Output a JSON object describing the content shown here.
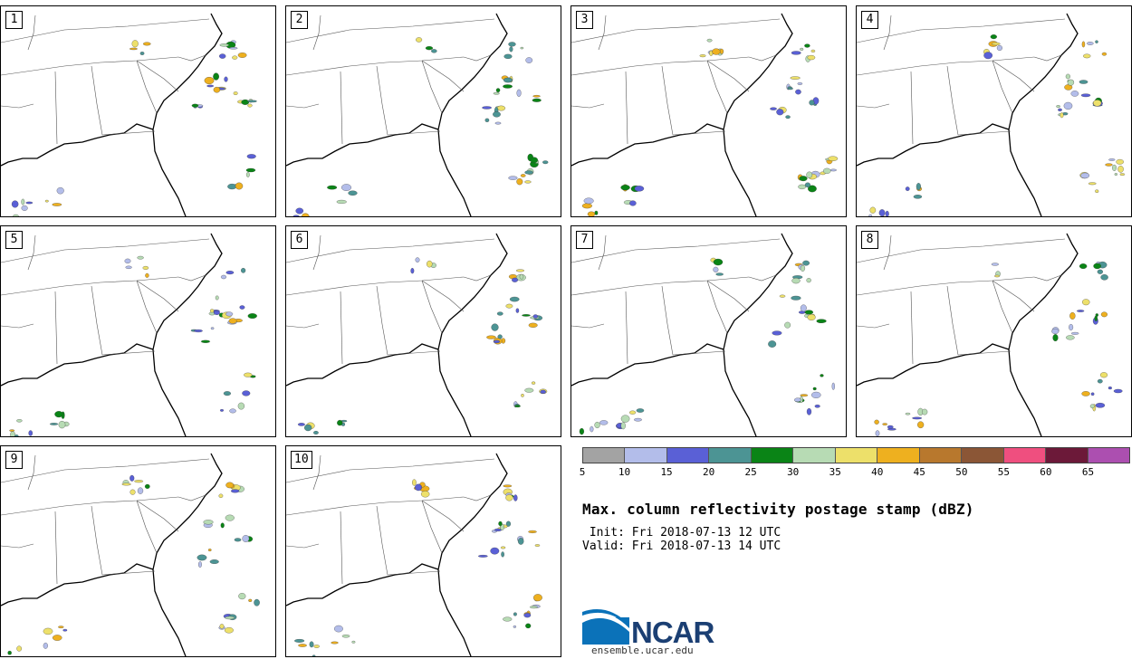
{
  "panels": [
    {
      "label": "1"
    },
    {
      "label": "2"
    },
    {
      "label": "3"
    },
    {
      "label": "4"
    },
    {
      "label": "5"
    },
    {
      "label": "6"
    },
    {
      "label": "7"
    },
    {
      "label": "8"
    },
    {
      "label": "9"
    },
    {
      "label": "10"
    }
  ],
  "colorbar": {
    "colors": [
      "#a3a3a3",
      "#b3bdea",
      "#5a60d6",
      "#4c9494",
      "#0a8416",
      "#b7dbb4",
      "#ede06a",
      "#eeb01f",
      "#b8782d",
      "#8b5636",
      "#ef4f7f",
      "#6c1939",
      "#ac4fb0"
    ],
    "ticks": [
      "5",
      "10",
      "15",
      "20",
      "25",
      "30",
      "35",
      "40",
      "45",
      "50",
      "55",
      "60",
      "65"
    ]
  },
  "title": "Max. column reflectivity postage stamp (dBZ)",
  "init": " Init: Fri 2018-07-13 12 UTC",
  "valid": "Valid: Fri 2018-07-13 14 UTC",
  "logo": {
    "text": "NCAR",
    "site": "ensemble.ucar.edu"
  }
}
